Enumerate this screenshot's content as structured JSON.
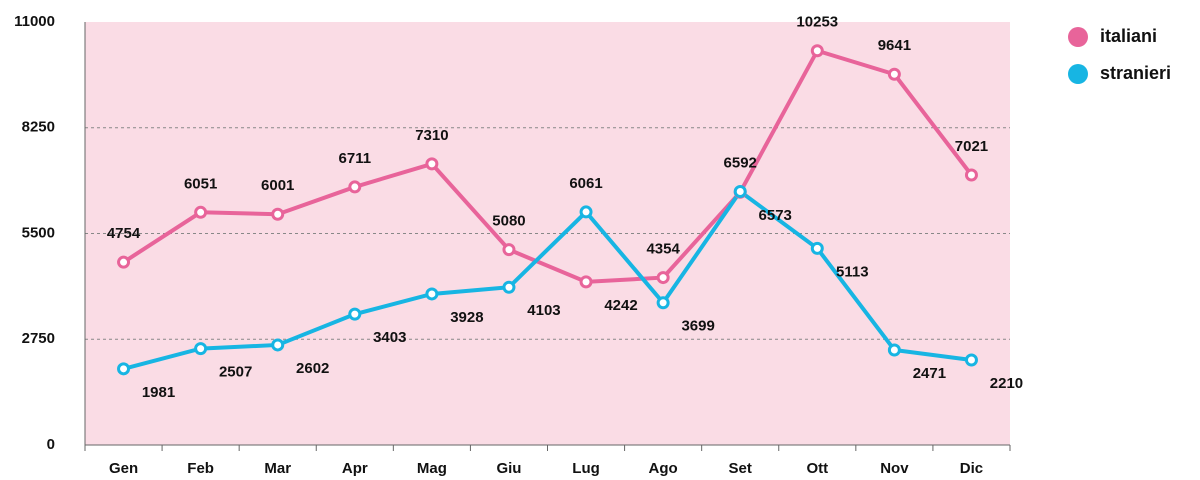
{
  "chart_data": {
    "type": "line",
    "categories": [
      "Gen",
      "Feb",
      "Mar",
      "Apr",
      "Mag",
      "Giu",
      "Lug",
      "Ago",
      "Set",
      "Ott",
      "Nov",
      "Dic"
    ],
    "series": [
      {
        "name": "italiani",
        "color": "#e8649a",
        "values": [
          4754,
          6051,
          6001,
          6711,
          7310,
          5080,
          4242,
          4354,
          6573,
          10253,
          9641,
          7021
        ]
      },
      {
        "name": "stranieri",
        "color": "#17b5e3",
        "values": [
          1981,
          2507,
          2602,
          3403,
          3928,
          4103,
          6061,
          3699,
          6592,
          5113,
          2471,
          2210
        ]
      }
    ],
    "ylim": [
      0,
      11000
    ],
    "yticks": [
      0,
      2750,
      5500,
      8250,
      11000
    ],
    "grid": true,
    "legend": "top-right"
  }
}
